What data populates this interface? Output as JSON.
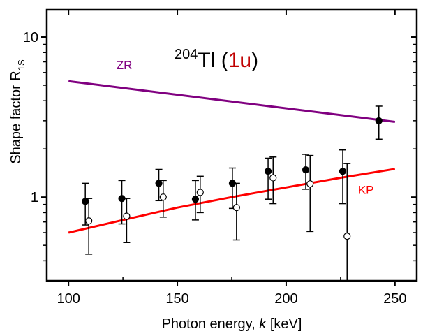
{
  "chart_data": {
    "type": "scatter",
    "title": {
      "isotope_mass": "204",
      "element": "Tl",
      "open_paren": "(",
      "transition": "1u",
      "close_paren": ")"
    },
    "xlabel": {
      "prefix": "Photon energy, ",
      "variable": "k",
      "suffix": " [keV]"
    },
    "ylabel": {
      "main": "Shape factor R",
      "subscript": "1S"
    },
    "xlim": [
      90,
      260
    ],
    "ylim": [
      0.3,
      14.8
    ],
    "yscale": "log",
    "x_ticks": [
      100,
      150,
      200,
      250
    ],
    "x_tick_labels": [
      "100",
      "150",
      "200",
      "250"
    ],
    "x_minor_ticks": [
      125,
      175,
      225
    ],
    "y_ticks": [
      1,
      10
    ],
    "y_tick_labels": [
      "1",
      "10"
    ],
    "y_minor_ticks": [
      0.4,
      0.5,
      0.6,
      0.7,
      0.8,
      0.9,
      2,
      3,
      4,
      5,
      6,
      7,
      8,
      9
    ],
    "grid": false,
    "curves": [
      {
        "name": "ZR",
        "color": "#800080",
        "x": [
          100,
          250
        ],
        "y": [
          5.3,
          2.95
        ],
        "label_at": [
          122,
          6.3
        ]
      },
      {
        "name": "KP",
        "color": "#ff0000",
        "x": [
          100,
          125,
          150,
          175,
          200,
          225,
          250
        ],
        "y": [
          0.6,
          0.72,
          0.86,
          1.0,
          1.15,
          1.32,
          1.5
        ],
        "label_at": [
          233,
          1.05
        ]
      }
    ],
    "series": [
      {
        "name": "filled",
        "marker": "filled-circle",
        "x": [
          107.7,
          124.5,
          141.5,
          158.3,
          175.3,
          191.7,
          209.0,
          226.0,
          242.6
        ],
        "y": [
          0.94,
          0.98,
          1.22,
          0.97,
          1.22,
          1.45,
          1.48,
          1.45,
          3.0
        ],
        "y_err_low": [
          0.67,
          0.68,
          0.95,
          0.72,
          0.85,
          0.97,
          1.12,
          0.91,
          2.3
        ],
        "y_err_high": [
          1.22,
          1.27,
          1.49,
          1.27,
          1.52,
          1.75,
          1.85,
          1.97,
          3.7
        ]
      },
      {
        "name": "open",
        "marker": "open-circle",
        "x": [
          109.3,
          126.7,
          143.5,
          160.5,
          177.2,
          194.0,
          211.0,
          228.0
        ],
        "y": [
          0.71,
          0.76,
          1.0,
          1.07,
          0.86,
          1.32,
          1.21,
          0.57
        ],
        "y_err_low": [
          0.44,
          0.52,
          0.75,
          0.8,
          0.54,
          0.91,
          0.61,
          0.3
        ],
        "y_err_high": [
          0.98,
          0.98,
          1.27,
          1.35,
          1.22,
          1.78,
          1.82,
          1.62
        ]
      }
    ]
  }
}
